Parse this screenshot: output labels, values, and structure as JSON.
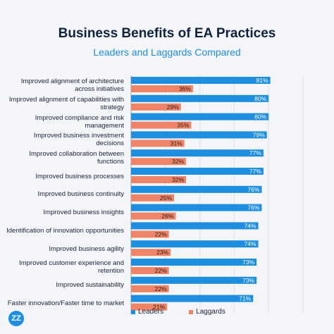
{
  "title": "Business Benefits of EA Practices",
  "subtitle": "Leaders and Laggards Compared",
  "logo_text": "ZZ",
  "colors": {
    "leaders": "#1d8ee0",
    "laggards": "#f08468",
    "title": "#10213d",
    "subtitle": "#1d8ee0"
  },
  "legend": {
    "leaders": "Leaders",
    "laggards": "Laggards"
  },
  "chart_data": {
    "type": "bar",
    "orientation": "horizontal",
    "grid": true,
    "legend_position": "bottom",
    "xlim": [
      0,
      100
    ],
    "categories": [
      "Improved alignment of architecture across initiatives",
      "Improved alignment of capabilities with strategy",
      "Improved compliance and risk management",
      "Improved business investment decisions",
      "Improved collaboration between functions",
      "Improved business processes",
      "Improved business continuity",
      "Improved business insights",
      "Identification of innovation opportunities",
      "Improved business agility",
      "Improved customer experience and retention",
      "Improved sustainability",
      "Faster innovation/Faster time to market"
    ],
    "series": [
      {
        "name": "Leaders",
        "values": [
          81,
          80,
          80,
          79,
          77,
          77,
          76,
          76,
          74,
          74,
          73,
          73,
          71
        ]
      },
      {
        "name": "Laggards",
        "values": [
          36,
          29,
          35,
          31,
          32,
          32,
          25,
          26,
          22,
          23,
          22,
          22,
          21
        ]
      }
    ],
    "value_suffix": "%"
  }
}
